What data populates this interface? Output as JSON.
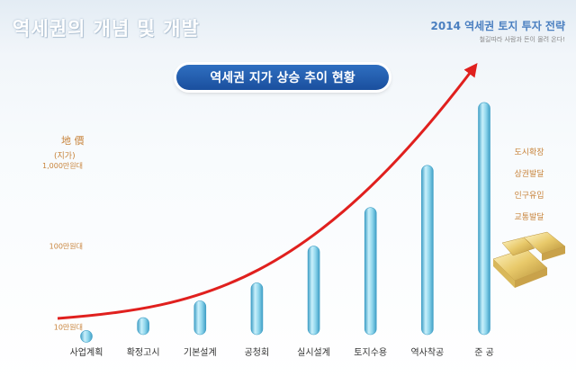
{
  "slide": {
    "title": "역세권의 개념 및 개발",
    "brand_title": "2014 역세권 토지 투자 전략",
    "brand_tagline": "철길따라 사람과 돈이 몰려 온다!"
  },
  "chart_data": {
    "type": "bar",
    "title": "역세권 지가 상승 추이 현황",
    "ylabel_line1": "地 價",
    "ylabel_line2": "(지가)",
    "scale": "log",
    "ylim": [
      80000,
      100000000
    ],
    "yticks": [
      {
        "value": 100000,
        "label": "10만원대"
      },
      {
        "value": 1000000,
        "label": "100만원대"
      },
      {
        "value": 10000000,
        "label": "1,000만원대"
      }
    ],
    "categories": [
      "사업계획",
      "확정고시",
      "기본설계",
      "공청회",
      "실시설계",
      "토지수용",
      "역사착공",
      "준 공"
    ],
    "values": [
      90000,
      130000,
      210000,
      350000,
      1000000,
      3000000,
      10000000,
      60000000
    ],
    "trend_arrow": true,
    "side_labels": [
      "도시확장",
      "상권발달",
      "인구유입",
      "교통발달"
    ],
    "colors": {
      "bar": "#7ccde6",
      "bar_edge": "#3f9fc6",
      "arrow": "#e0201e",
      "label": "#c8843c"
    }
  }
}
